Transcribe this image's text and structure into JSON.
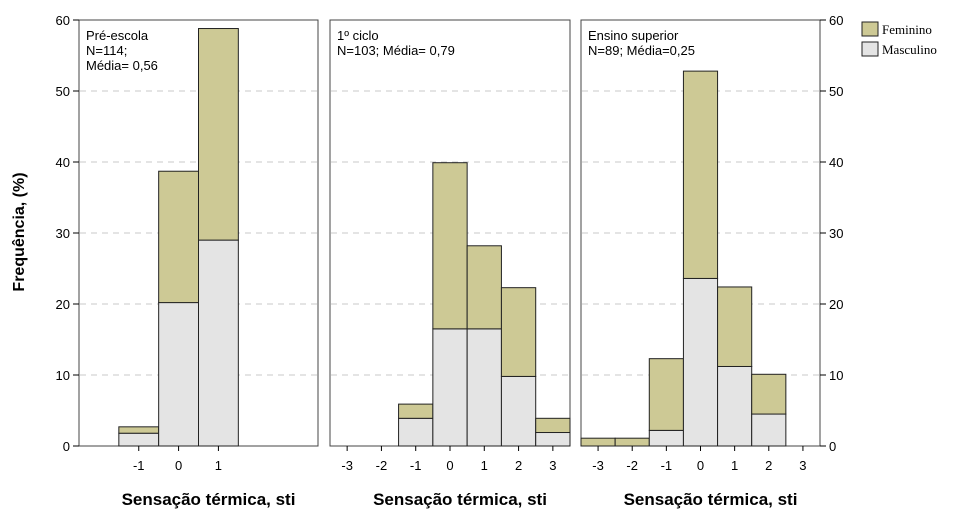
{
  "chart_data": {
    "type": "bar",
    "stacked": true,
    "ylabel": "Frequência, (%)",
    "ylim": [
      0,
      60
    ],
    "yticks": [
      0,
      10,
      20,
      30,
      40,
      50,
      60
    ],
    "grid": true,
    "legend": {
      "placement": "top-right",
      "entries": [
        {
          "name": "Feminino",
          "color": "#cdc995"
        },
        {
          "name": "Masculino",
          "color": "#e4e4e4"
        }
      ]
    },
    "panels": [
      {
        "annotation": [
          "Pré-escola",
          "N=114;",
          "Média= 0,56"
        ],
        "xlabel": "Sensação térmica, sti",
        "xticks": [
          "-1",
          "0",
          "1"
        ],
        "x": [
          -1,
          0,
          1
        ],
        "series": [
          {
            "name": "Masculino",
            "values": [
              1.8,
              20.2,
              29.0
            ]
          },
          {
            "name": "Feminino",
            "values": [
              0.9,
              18.5,
              29.8
            ]
          }
        ]
      },
      {
        "annotation": [
          "1º ciclo",
          "N=103; Média= 0,79"
        ],
        "xlabel": "Sensação térmica, sti",
        "xticks": [
          "-3",
          "-2",
          "-1",
          "0",
          "1",
          "2",
          "3"
        ],
        "x": [
          -1,
          0,
          1,
          2,
          3
        ],
        "series": [
          {
            "name": "Masculino",
            "values": [
              3.9,
              16.5,
              16.5,
              9.8,
              1.9
            ]
          },
          {
            "name": "Feminino",
            "values": [
              2.0,
              23.4,
              11.7,
              12.5,
              2.0
            ]
          }
        ]
      },
      {
        "annotation": [
          "Ensino superior",
          "N=89; Média=0,25"
        ],
        "xlabel": "Sensação térmica, sti",
        "xticks": [
          "-3",
          "-2",
          "-1",
          "0",
          "1",
          "2",
          "3"
        ],
        "x": [
          -3,
          -2,
          -1,
          0,
          1,
          2
        ],
        "series": [
          {
            "name": "Masculino",
            "values": [
              0,
              0,
              2.2,
              23.6,
              11.2,
              4.5
            ]
          },
          {
            "name": "Feminino",
            "values": [
              1.1,
              1.1,
              10.1,
              29.2,
              11.2,
              5.6
            ]
          }
        ]
      }
    ]
  }
}
